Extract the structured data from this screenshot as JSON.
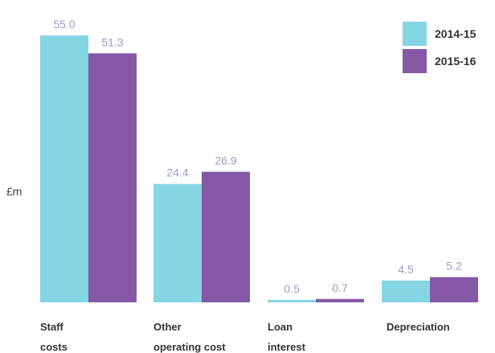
{
  "chart_data": {
    "type": "bar",
    "ylabel": "£m",
    "ylim": [
      0,
      55.0
    ],
    "categories": [
      [
        "Staff",
        "costs"
      ],
      [
        "Other",
        "operating cost"
      ],
      [
        "Loan",
        "interest"
      ],
      [
        "Depreciation"
      ]
    ],
    "series": [
      {
        "name": "2014-15",
        "color": "#86d5e2",
        "values": [
          55.0,
          24.4,
          0.5,
          4.5
        ]
      },
      {
        "name": "2015-16",
        "color": "#8558a6",
        "values": [
          51.3,
          26.9,
          0.7,
          5.2
        ]
      }
    ],
    "data_labels": [
      [
        "55.0",
        "24.4",
        "0.5",
        "4.5"
      ],
      [
        "51.3",
        "26.9",
        "0.7",
        "5.2"
      ]
    ],
    "label_color": "#a397c9",
    "legend": "top-right",
    "grid": false
  }
}
